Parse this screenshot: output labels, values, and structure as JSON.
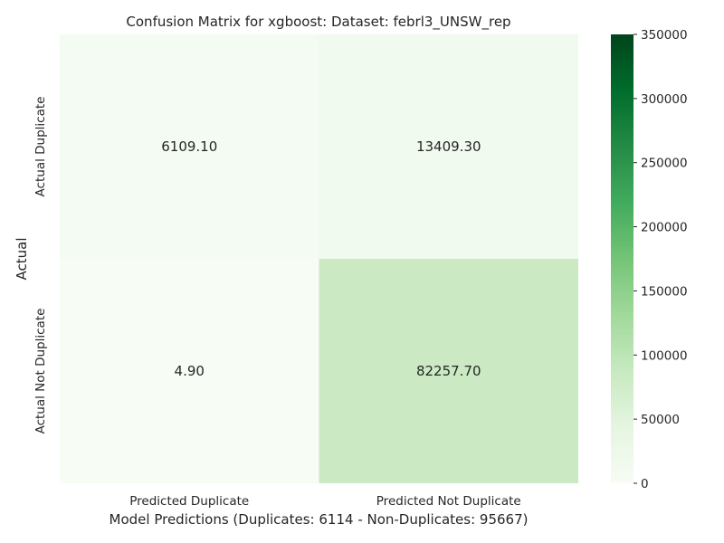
{
  "chart_data": {
    "type": "heatmap",
    "title": "Confusion Matrix for xgboost: Dataset: febrl3_UNSW_rep",
    "xlabel": "Model Predictions (Duplicates: 6114 - Non-Duplicates: 95667)",
    "ylabel": "Actual",
    "x_categories": [
      "Predicted Duplicate",
      "Predicted Not Duplicate"
    ],
    "y_categories": [
      "Actual Duplicate",
      "Actual Not Duplicate"
    ],
    "values": [
      [
        6109.1,
        13409.3
      ],
      [
        4.9,
        82257.7
      ]
    ],
    "value_labels": [
      [
        "6109.10",
        "13409.30"
      ],
      [
        "4.90",
        "82257.70"
      ]
    ],
    "colorbar": {
      "min": 0,
      "max": 350000,
      "ticks": [
        "0",
        "50000",
        "100000",
        "150000",
        "200000",
        "250000",
        "300000",
        "350000"
      ],
      "colors": [
        "#f7fcf5",
        "#e5f5e0",
        "#c7e9c0",
        "#a1d99b",
        "#74c476",
        "#41ab5d",
        "#238b45",
        "#006d2c",
        "#00441b"
      ]
    },
    "grid": false
  }
}
